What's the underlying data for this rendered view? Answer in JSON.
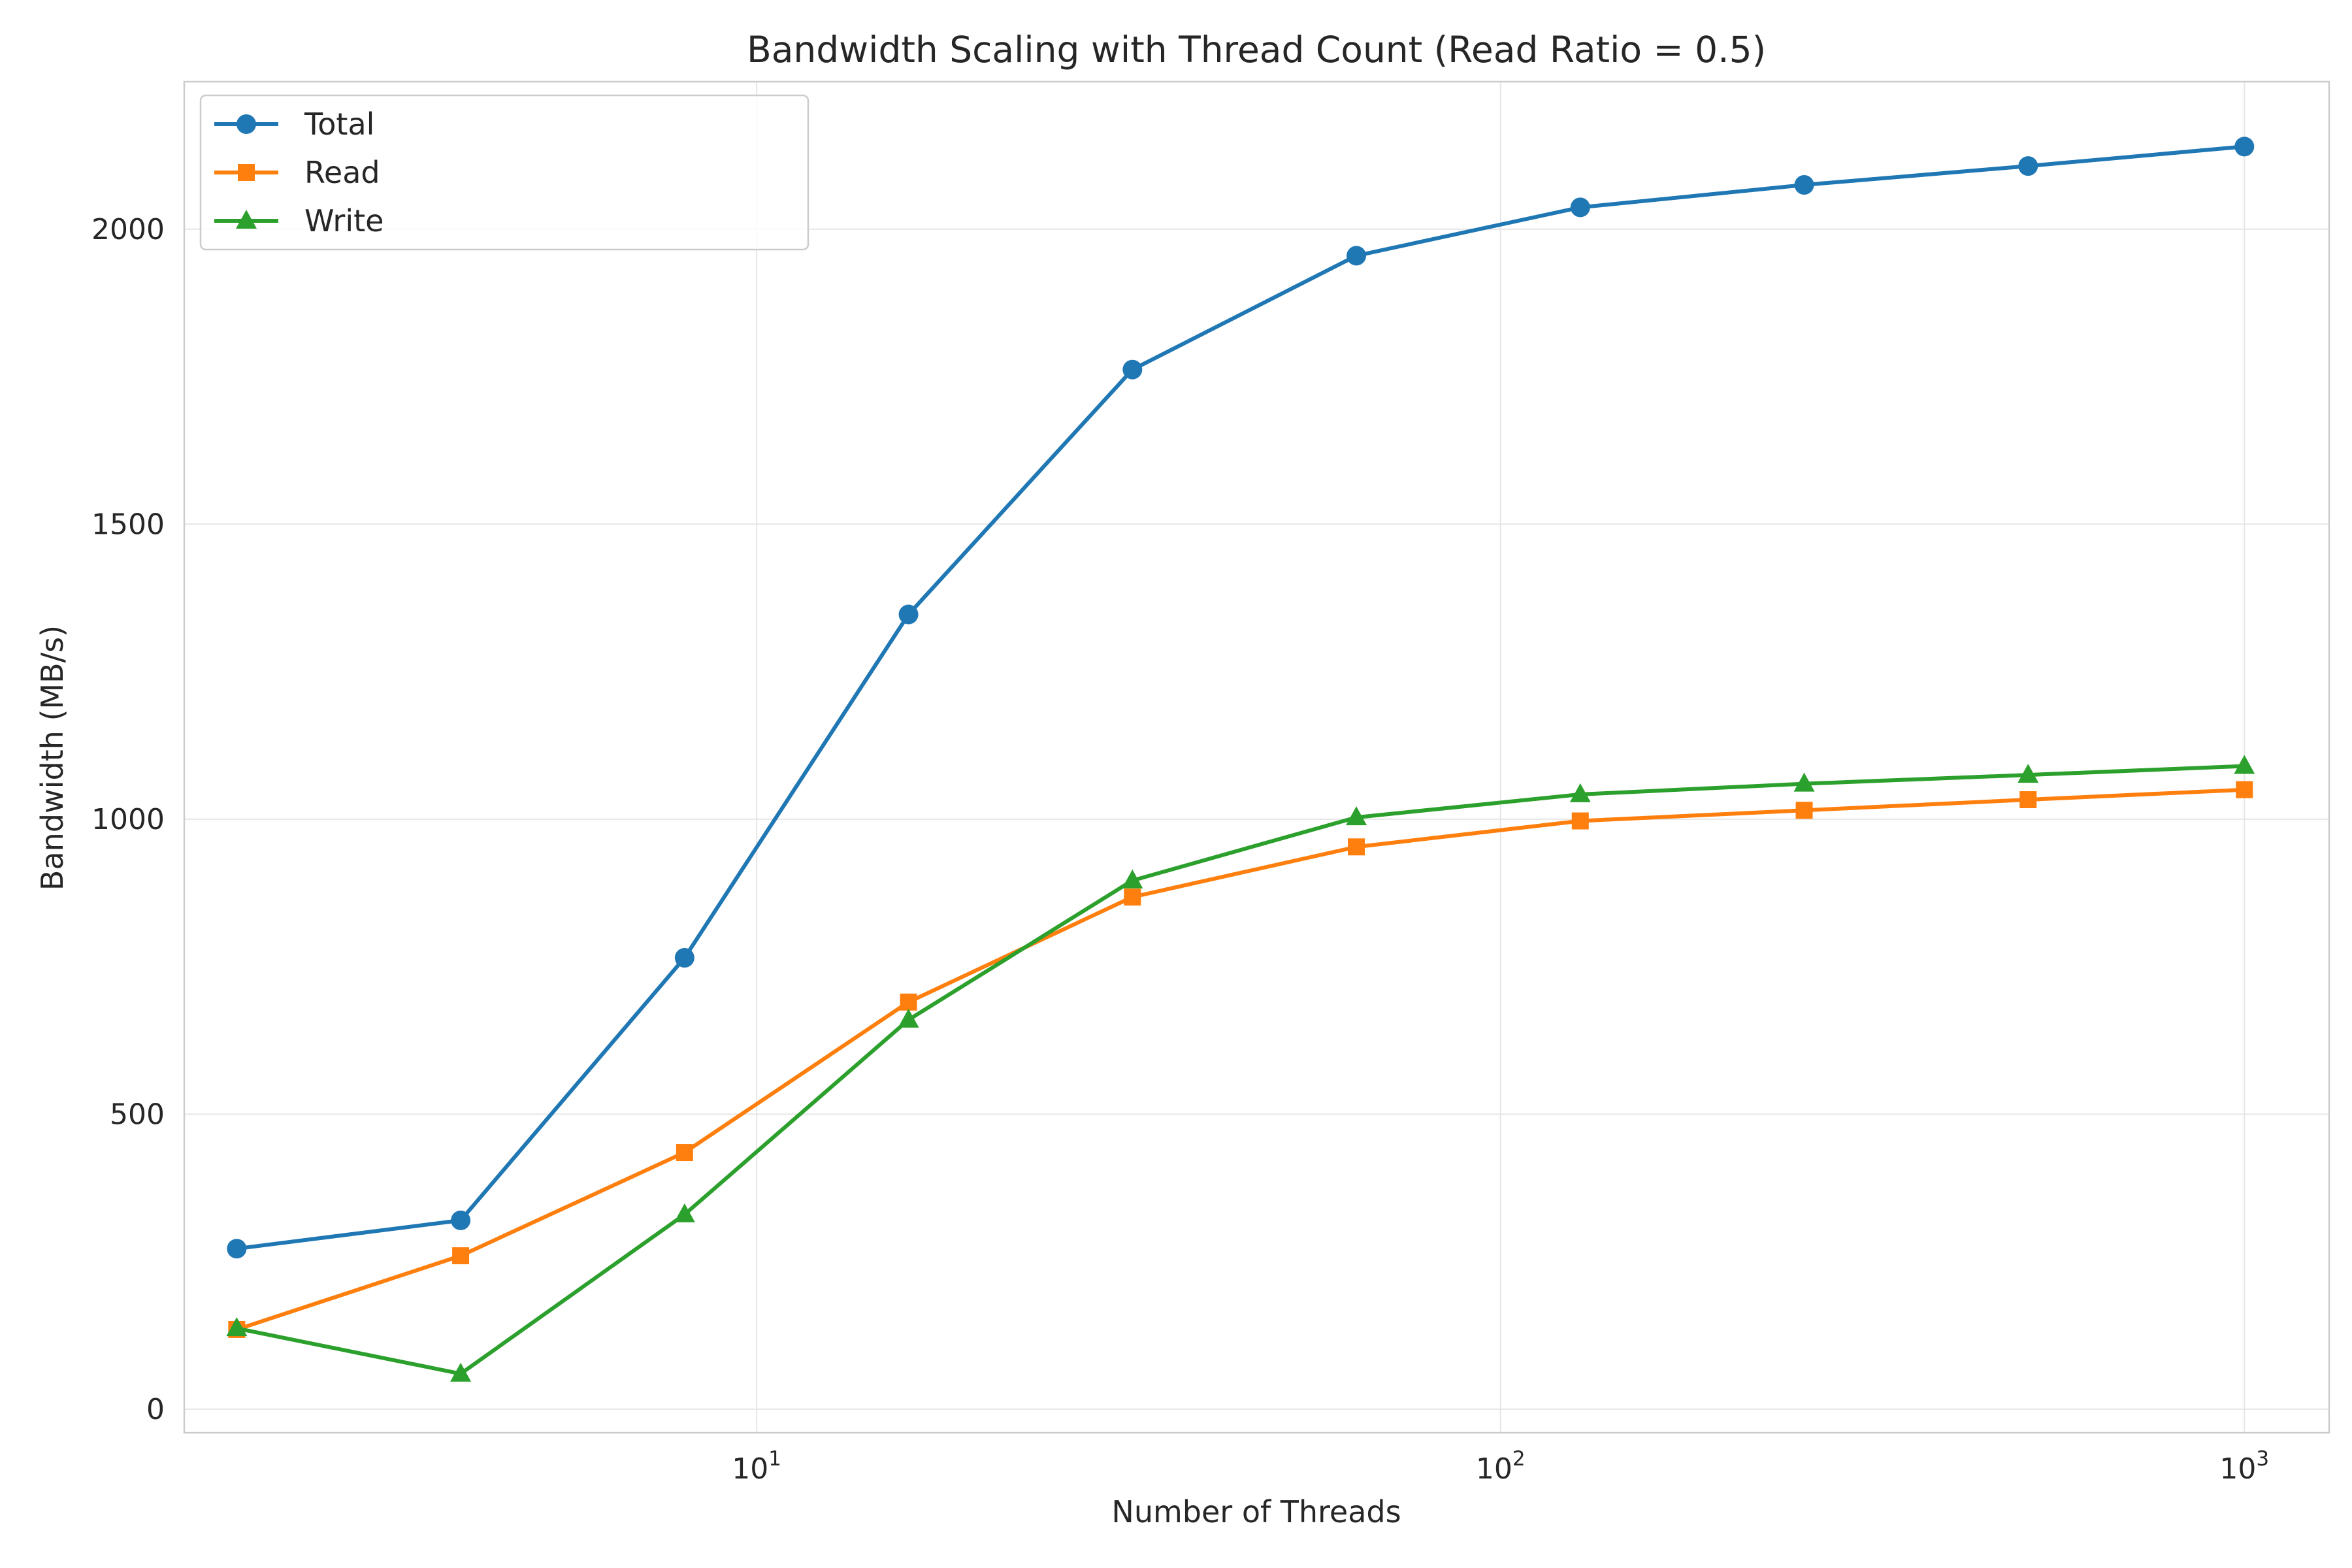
{
  "chart_data": {
    "type": "line",
    "title": "Bandwidth Scaling with Thread Count (Read Ratio = 0.5)",
    "xlabel": "Number of Threads",
    "ylabel": "Bandwidth (MB/s)",
    "x_scale": "log",
    "xlim": [
      1.7,
      1300
    ],
    "ylim": [
      -40,
      2250
    ],
    "x_ticks": [
      {
        "value": 10,
        "base": "10",
        "exp": "1"
      },
      {
        "value": 100,
        "base": "10",
        "exp": "2"
      },
      {
        "value": 1000,
        "base": "10",
        "exp": "3"
      }
    ],
    "y_ticks": [
      {
        "value": 0,
        "label": "0"
      },
      {
        "value": 500,
        "label": "500"
      },
      {
        "value": 1000,
        "label": "1000"
      },
      {
        "value": 1500,
        "label": "1500"
      },
      {
        "value": 2000,
        "label": "2000"
      }
    ],
    "grid": true,
    "legend_position": "top-left",
    "x": [
      2,
      4,
      8,
      16,
      32,
      64,
      128,
      256,
      512,
      1000
    ],
    "series": [
      {
        "name": "Total",
        "color": "#1f77b4",
        "marker": "circle",
        "values": [
          272,
          320,
          765,
          1347,
          1762,
          1955,
          2037,
          2075,
          2107,
          2140
        ]
      },
      {
        "name": "Read",
        "color": "#ff7f0e",
        "marker": "square",
        "values": [
          135,
          260,
          435,
          690,
          868,
          953,
          997,
          1015,
          1033,
          1050
        ]
      },
      {
        "name": "Write",
        "color": "#2ca02c",
        "marker": "triangle",
        "values": [
          137,
          60,
          330,
          660,
          896,
          1003,
          1042,
          1060,
          1075,
          1090
        ]
      }
    ]
  }
}
